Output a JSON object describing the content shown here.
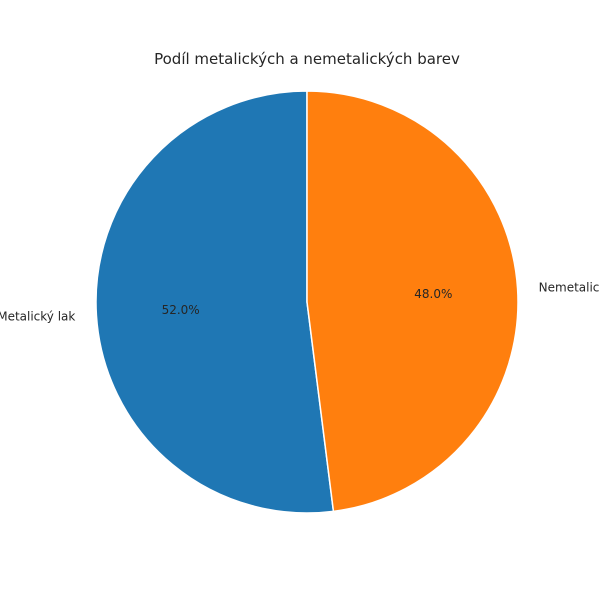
{
  "chart_data": {
    "type": "pie",
    "title": "Podíl metalických a nemetalických barev",
    "slices": [
      {
        "label": "Metalický lak",
        "value": 52.0,
        "pct_label": "52.0%",
        "color": "#1f77b4"
      },
      {
        "label": "Nemetalický lak",
        "value": 48.0,
        "pct_label": "48.0%",
        "color": "#ff7f0e"
      }
    ],
    "start_angle_deg": 90,
    "direction": "counterclockwise",
    "edge_color": "#ffffff"
  }
}
